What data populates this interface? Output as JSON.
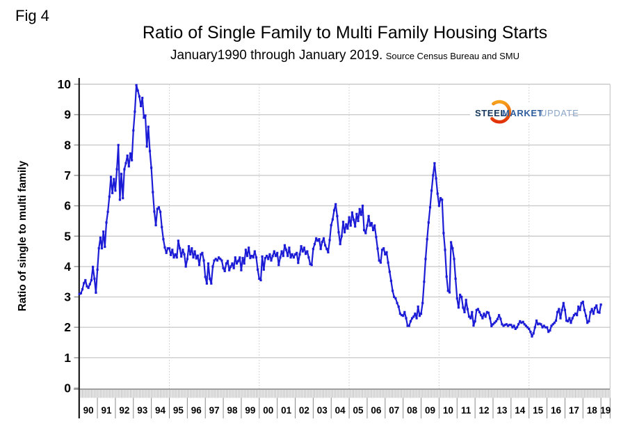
{
  "fig_label": "Fig 4",
  "title": "Ratio of Single Family to Multi Family Housing Starts",
  "subtitle": "January1990 through January 2019.",
  "source_note": "Source Census Bureau and SMU",
  "logo": {
    "word1": "STEEL",
    "word2": "MARKET",
    "word3": "UPDATE",
    "word1_color": "#16365c",
    "word2_color": "#2e5d9e",
    "word3_color": "#8aa5c8",
    "swoosh_top_color": "#f7a11a",
    "swoosh_bottom_color": "#e23008"
  },
  "chart_data": {
    "type": "line",
    "title": "Ratio of Single Family to Multi Family Housing Starts",
    "subtitle": "January1990 through January 2019. Source Census Bureau and SMU",
    "xlabel": "",
    "ylabel": "Ratio of single to multi family",
    "ylim": [
      0,
      10
    ],
    "y_ticks": [
      0,
      1,
      2,
      3,
      4,
      5,
      6,
      7,
      8,
      9,
      10
    ],
    "x_tick_labels": [
      "90",
      "91",
      "92",
      "93",
      "94",
      "95",
      "96",
      "97",
      "98",
      "99",
      "00",
      "01",
      "02",
      "03",
      "04",
      "05",
      "06",
      "07",
      "08",
      "09",
      "10",
      "11",
      "12",
      "13",
      "14",
      "15",
      "16",
      "17",
      "18",
      "19"
    ],
    "x_start": "1990-01",
    "x_end": "2019-01",
    "frequency": "monthly",
    "grid": true,
    "dotted_gridline_years": [
      1995,
      2000,
      2005,
      2010,
      2015
    ],
    "line_color": "#1c1cd6",
    "grid_color": "#cccccc",
    "series": [
      {
        "name": "Ratio of single family to multi family housing starts",
        "values": [
          3.1,
          3.12,
          3.25,
          3.45,
          3.55,
          3.35,
          3.3,
          3.42,
          3.55,
          3.99,
          3.6,
          3.14,
          3.9,
          4.6,
          4.95,
          4.6,
          5.15,
          4.65,
          5.45,
          5.8,
          6.3,
          6.95,
          6.42,
          6.88,
          6.5,
          7.2,
          8.0,
          6.2,
          7.05,
          6.25,
          7.2,
          7.4,
          7.65,
          7.3,
          7.72,
          7.5,
          8.48,
          9.1,
          9.97,
          9.79,
          9.6,
          9.28,
          9.55,
          8.9,
          8.97,
          7.95,
          8.6,
          7.8,
          7.25,
          6.45,
          5.81,
          5.36,
          5.9,
          5.95,
          5.8,
          5.3,
          4.9,
          4.63,
          4.45,
          4.6,
          4.6,
          4.38,
          4.55,
          4.3,
          4.4,
          4.3,
          4.85,
          4.6,
          4.33,
          4.55,
          4.4,
          4.0,
          4.25,
          4.67,
          4.4,
          4.6,
          4.3,
          4.5,
          4.27,
          4.36,
          4.05,
          4.4,
          4.45,
          4.2,
          3.66,
          3.44,
          4.1,
          3.6,
          3.44,
          4.0,
          4.2,
          4.25,
          4.2,
          4.3,
          4.25,
          4.2,
          3.95,
          3.85,
          4.1,
          4.18,
          3.88,
          4.0,
          4.1,
          3.95,
          4.3,
          4.1,
          4.18,
          4.3,
          3.88,
          4.28,
          4.1,
          4.55,
          4.35,
          4.62,
          4.28,
          4.35,
          4.3,
          4.5,
          4.3,
          3.9,
          3.6,
          3.55,
          4.33,
          3.9,
          4.28,
          4.35,
          4.25,
          4.4,
          4.2,
          4.35,
          4.5,
          4.35,
          4.45,
          4.05,
          4.3,
          4.5,
          4.35,
          4.7,
          4.55,
          4.35,
          4.62,
          4.3,
          4.4,
          4.3,
          4.4,
          4.45,
          4.12,
          4.4,
          4.67,
          4.5,
          4.62,
          4.42,
          4.5,
          4.3,
          4.08,
          4.05,
          4.58,
          4.74,
          4.93,
          4.85,
          4.9,
          4.58,
          4.81,
          4.93,
          4.7,
          4.58,
          4.47,
          4.87,
          5.36,
          5.55,
          5.85,
          6.05,
          5.66,
          5.13,
          4.74,
          5.0,
          5.47,
          5.13,
          5.39,
          5.25,
          5.62,
          5.35,
          5.78,
          5.54,
          5.32,
          5.73,
          5.5,
          5.89,
          5.7,
          6.0,
          5.2,
          5.1,
          5.35,
          5.66,
          5.35,
          5.43,
          5.2,
          5.35,
          4.97,
          4.59,
          4.2,
          4.13,
          4.55,
          4.6,
          4.4,
          4.47,
          4.13,
          3.83,
          3.53,
          3.2,
          3.0,
          2.95,
          2.8,
          2.68,
          2.45,
          2.4,
          2.38,
          2.5,
          2.3,
          2.05,
          2.05,
          2.2,
          2.3,
          2.35,
          2.45,
          2.3,
          2.68,
          2.38,
          2.45,
          2.8,
          3.5,
          4.25,
          4.9,
          5.45,
          5.95,
          6.5,
          7.0,
          7.4,
          6.9,
          6.4,
          6.0,
          6.25,
          6.2,
          5.1,
          4.55,
          3.67,
          3.2,
          3.15,
          4.8,
          4.6,
          4.25,
          3.6,
          2.95,
          2.65,
          3.07,
          3.0,
          2.65,
          2.5,
          2.9,
          2.6,
          2.35,
          2.3,
          2.5,
          2.06,
          2.2,
          2.57,
          2.6,
          2.5,
          2.4,
          2.3,
          2.45,
          2.35,
          2.5,
          2.48,
          2.3,
          2.04,
          2.1,
          2.15,
          2.2,
          2.27,
          2.4,
          2.28,
          2.1,
          2.05,
          2.08,
          2.1,
          2.05,
          2.08,
          2.08,
          2.0,
          2.05,
          1.95,
          2.0,
          2.1,
          2.2,
          2.15,
          2.18,
          2.1,
          2.05,
          2.0,
          1.95,
          1.85,
          1.7,
          1.8,
          2.0,
          2.22,
          2.1,
          2.12,
          2.1,
          2.0,
          2.05,
          2.0,
          2.0,
          1.85,
          1.9,
          2.05,
          2.1,
          2.15,
          2.22,
          2.5,
          2.6,
          2.3,
          2.57,
          2.8,
          2.57,
          2.22,
          2.2,
          2.3,
          2.15,
          2.3,
          2.4,
          2.45,
          2.4,
          2.68,
          2.57,
          2.8,
          2.84,
          2.57,
          2.38,
          2.15,
          2.2,
          2.5,
          2.6,
          2.45,
          2.64,
          2.72,
          2.5,
          2.48,
          2.75
        ]
      }
    ]
  }
}
